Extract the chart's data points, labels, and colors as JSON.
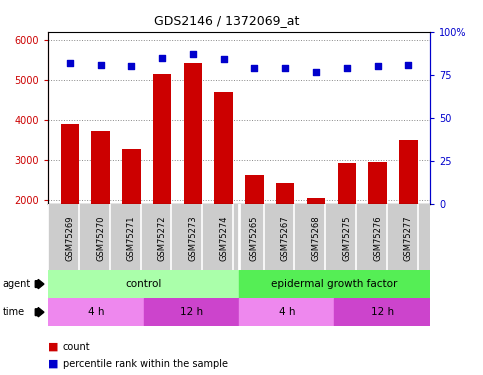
{
  "title": "GDS2146 / 1372069_at",
  "samples": [
    "GSM75269",
    "GSM75270",
    "GSM75271",
    "GSM75272",
    "GSM75273",
    "GSM75274",
    "GSM75265",
    "GSM75267",
    "GSM75268",
    "GSM75275",
    "GSM75276",
    "GSM75277"
  ],
  "counts": [
    3900,
    3720,
    3290,
    5150,
    5430,
    4690,
    2620,
    2430,
    2060,
    2920,
    2960,
    3510
  ],
  "percentiles": [
    82,
    81,
    80,
    85,
    87,
    84,
    79,
    79,
    77,
    79,
    80,
    81
  ],
  "ylim_left": [
    1900,
    6200
  ],
  "ylim_right": [
    0,
    100
  ],
  "yticks_left": [
    2000,
    3000,
    4000,
    5000,
    6000
  ],
  "yticks_right": [
    0,
    25,
    50,
    75,
    100
  ],
  "bar_color": "#cc0000",
  "dot_color": "#0000cc",
  "agent_groups": [
    {
      "label": "control",
      "start": 0,
      "end": 6,
      "color": "#aaffaa"
    },
    {
      "label": "epidermal growth factor",
      "start": 6,
      "end": 12,
      "color": "#55ee55"
    }
  ],
  "time_groups": [
    {
      "label": "4 h",
      "start": 0,
      "end": 3,
      "color": "#ee88ee"
    },
    {
      "label": "12 h",
      "start": 3,
      "end": 6,
      "color": "#cc44cc"
    },
    {
      "label": "4 h",
      "start": 6,
      "end": 9,
      "color": "#ee88ee"
    },
    {
      "label": "12 h",
      "start": 9,
      "end": 12,
      "color": "#cc44cc"
    }
  ],
  "legend_count_color": "#cc0000",
  "legend_dot_color": "#0000cc",
  "grid_color": "#888888",
  "bg_color": "#cccccc",
  "plot_bg": "#ffffff"
}
